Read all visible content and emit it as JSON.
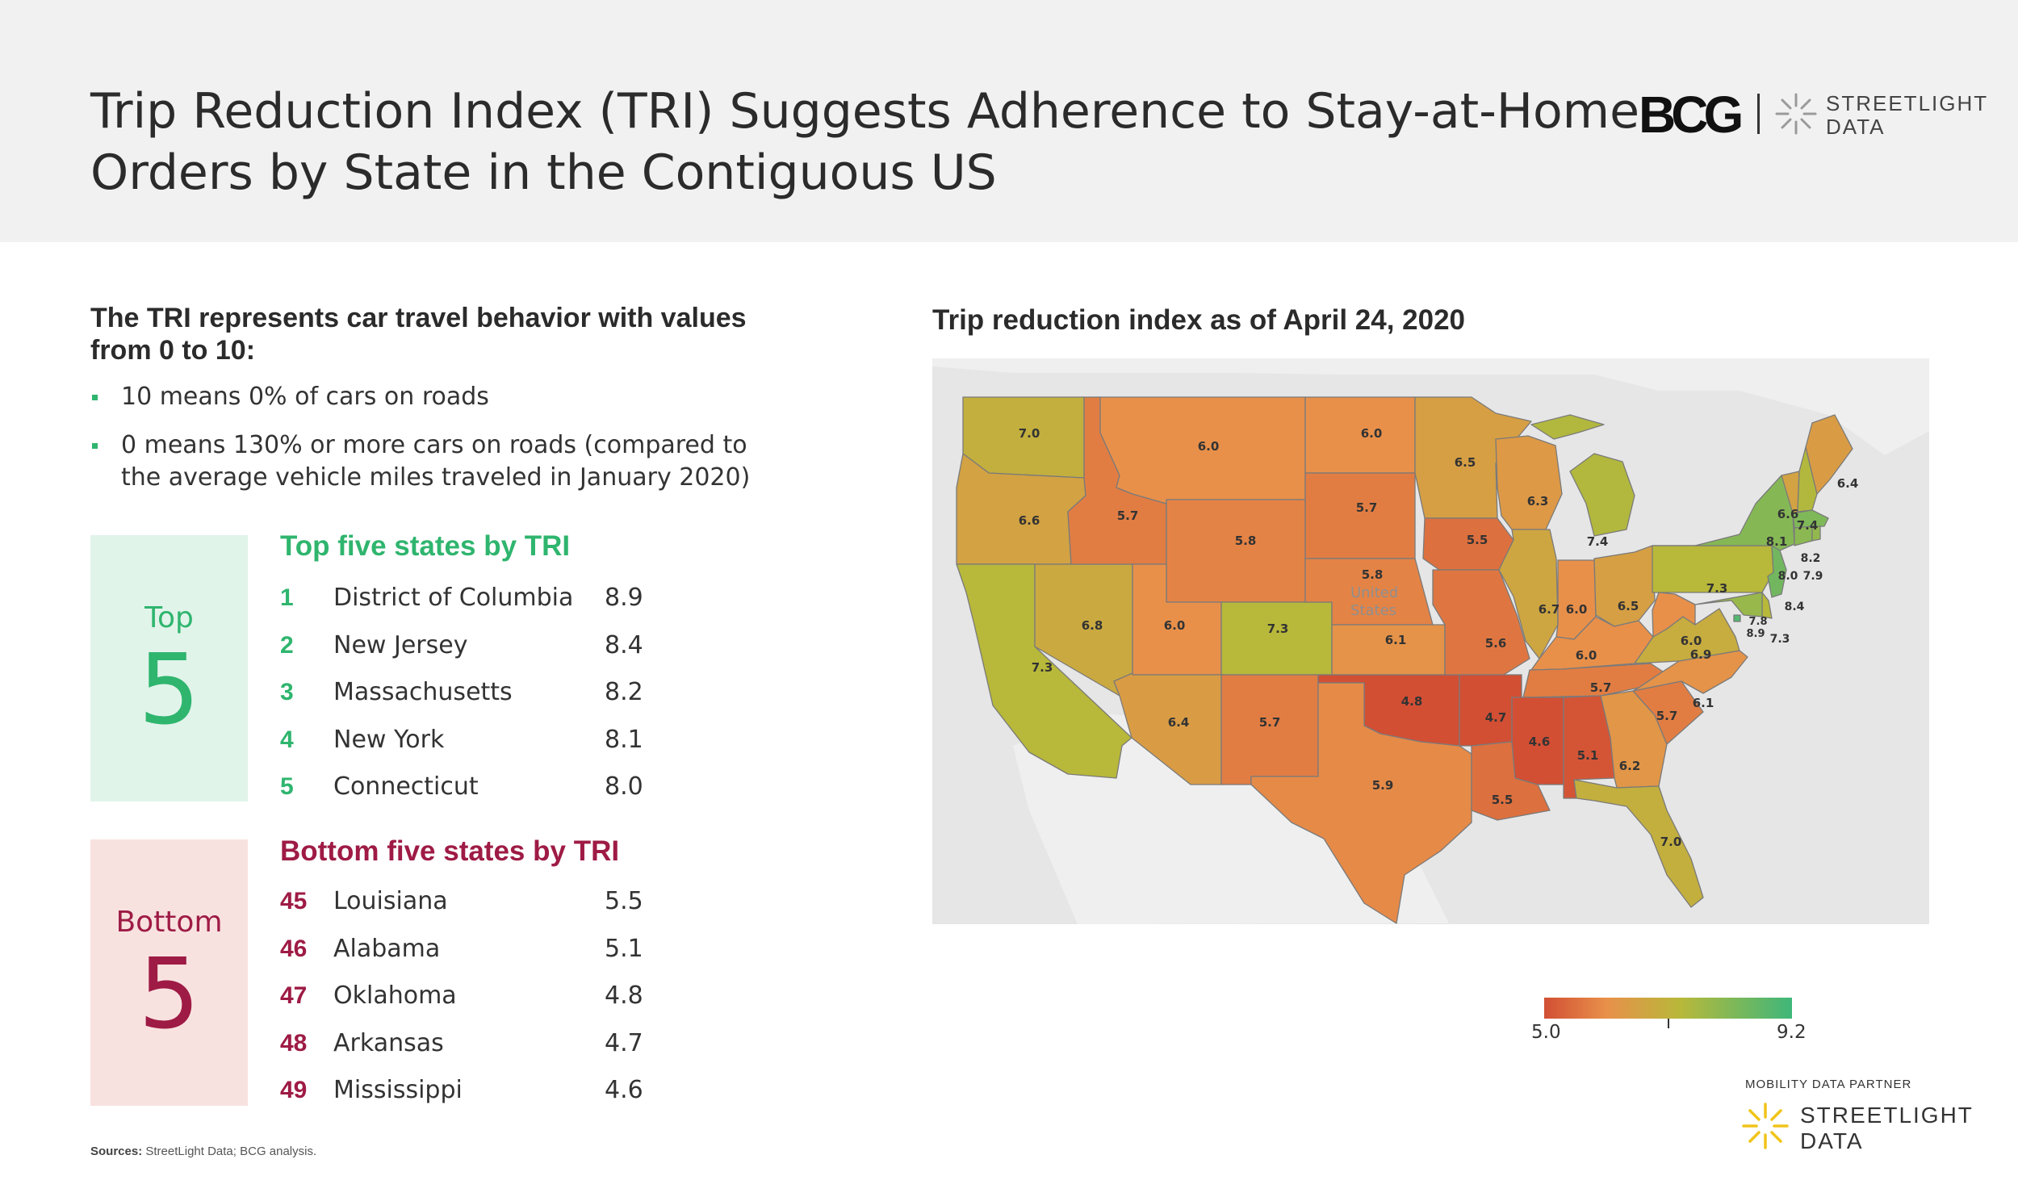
{
  "header": {
    "title_line1": "Trip Reduction Index (TRI) Suggests Adherence to Stay-at-Home",
    "title_line2": "Orders by State in the Contiguous US",
    "bcg_logo": "BCG",
    "streetlight_line1": "STREETLIGHT",
    "streetlight_line2": "DATA"
  },
  "intro": {
    "heading": "The TRI represents car travel behavior with values from 0 to 10:",
    "bullets": [
      "10 means 0% of cars on roads",
      "0 means 130% or more cars on roads (compared to the average vehicle miles traveled in January 2020)"
    ]
  },
  "top": {
    "card_label": "Top",
    "card_number": "5",
    "heading": "Top five states by TRI",
    "rows": [
      {
        "rank": "1",
        "state": "District of Columbia",
        "value": "8.9"
      },
      {
        "rank": "2",
        "state": "New Jersey",
        "value": "8.4"
      },
      {
        "rank": "3",
        "state": "Massachusetts",
        "value": "8.2"
      },
      {
        "rank": "4",
        "state": "New York",
        "value": "8.1"
      },
      {
        "rank": "5",
        "state": "Connecticut",
        "value": "8.0"
      }
    ]
  },
  "bottom": {
    "card_label": "Bottom",
    "card_number": "5",
    "heading": "Bottom five states by TRI",
    "rows": [
      {
        "rank": "45",
        "state": "Louisiana",
        "value": "5.5"
      },
      {
        "rank": "46",
        "state": "Alabama",
        "value": "5.1"
      },
      {
        "rank": "47",
        "state": "Oklahoma",
        "value": "4.8"
      },
      {
        "rank": "48",
        "state": "Arkansas",
        "value": "4.7"
      },
      {
        "rank": "49",
        "state": "Mississippi",
        "value": "4.6"
      }
    ]
  },
  "map": {
    "title": "Trip reduction index as of April 24, 2020",
    "background_label_line1": "United",
    "background_label_line2": "States",
    "legend_min": "5.0",
    "legend_max": "9.2",
    "colors": {
      "low": "#d24f34",
      "mid_low": "#e8904a",
      "mid": "#b8b83a",
      "high": "#3fb77a"
    },
    "state_values": [
      {
        "state": "WA",
        "value": "7.0"
      },
      {
        "state": "OR",
        "value": "6.6"
      },
      {
        "state": "CA",
        "value": "7.3"
      },
      {
        "state": "NV",
        "value": "6.8"
      },
      {
        "state": "ID",
        "value": "5.7"
      },
      {
        "state": "MT",
        "value": "6.0"
      },
      {
        "state": "WY",
        "value": "5.8"
      },
      {
        "state": "UT",
        "value": "6.0"
      },
      {
        "state": "AZ",
        "value": "6.4"
      },
      {
        "state": "CO",
        "value": "7.3"
      },
      {
        "state": "NM",
        "value": "5.7"
      },
      {
        "state": "ND",
        "value": "6.0"
      },
      {
        "state": "SD",
        "value": "5.7"
      },
      {
        "state": "NE",
        "value": "5.8"
      },
      {
        "state": "KS",
        "value": "6.1"
      },
      {
        "state": "OK",
        "value": "4.8"
      },
      {
        "state": "TX",
        "value": "5.9"
      },
      {
        "state": "MN",
        "value": "6.5"
      },
      {
        "state": "IA",
        "value": "5.5"
      },
      {
        "state": "MO",
        "value": "5.6"
      },
      {
        "state": "AR",
        "value": "4.7"
      },
      {
        "state": "LA",
        "value": "5.5"
      },
      {
        "state": "WI",
        "value": "6.3"
      },
      {
        "state": "IL",
        "value": "6.7"
      },
      {
        "state": "MI",
        "value": "7.4"
      },
      {
        "state": "IN",
        "value": "6.0"
      },
      {
        "state": "OH",
        "value": "6.5"
      },
      {
        "state": "KY",
        "value": "6.0"
      },
      {
        "state": "TN",
        "value": "5.7"
      },
      {
        "state": "MS",
        "value": "4.6"
      },
      {
        "state": "AL",
        "value": "5.1"
      },
      {
        "state": "GA",
        "value": "6.2"
      },
      {
        "state": "FL",
        "value": "7.0"
      },
      {
        "state": "SC",
        "value": "5.7"
      },
      {
        "state": "NC",
        "value": "6.1"
      },
      {
        "state": "VA",
        "value": "6.9"
      },
      {
        "state": "WV",
        "value": "6.0"
      },
      {
        "state": "PA",
        "value": "7.3"
      },
      {
        "state": "NY",
        "value": "8.1"
      },
      {
        "state": "VT",
        "value": "6.6"
      },
      {
        "state": "NH",
        "value": "7.4"
      },
      {
        "state": "ME",
        "value": "6.4"
      },
      {
        "state": "MA",
        "value": "8.2"
      },
      {
        "state": "CT",
        "value": "8.0"
      },
      {
        "state": "RI",
        "value": "7.9"
      },
      {
        "state": "NJ",
        "value": "8.4"
      },
      {
        "state": "DE",
        "value": "7.3"
      },
      {
        "state": "MD",
        "value": "7.8"
      },
      {
        "state": "DC",
        "value": "8.9"
      }
    ]
  },
  "footer": {
    "sources_label": "Sources:",
    "sources_text": "StreetLight Data; BCG analysis.",
    "partner_label": "MOBILITY DATA PARTNER",
    "streetlight_line1": "STREETLIGHT",
    "streetlight_line2": "DATA"
  }
}
